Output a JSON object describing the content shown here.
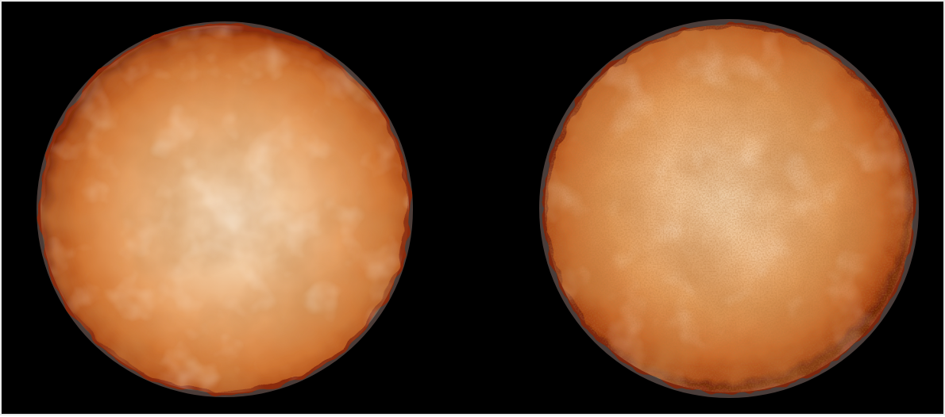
{
  "image": {
    "background_color": "#000000",
    "border_color": "#e9e9e9",
    "palette": {
      "core": "#f4dcc0",
      "mid": "#e8a064",
      "outer": "#c8682a",
      "rim": "#7a2406",
      "halo": "#4a3b38"
    },
    "panels": [
      {
        "name": "smooth-turbulent-disc",
        "texture": "smooth"
      },
      {
        "name": "grainy-turbulent-disc",
        "texture": "grainy"
      }
    ]
  }
}
